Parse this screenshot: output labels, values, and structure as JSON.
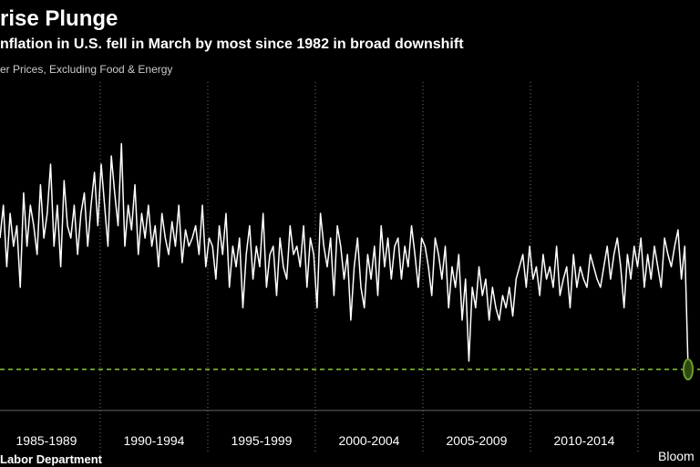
{
  "chart_data": {
    "type": "line",
    "title": "rise Plunge",
    "subtitle": "nflation in U.S. fell in March by most since 1982 in broad downshift",
    "y_label": "er Prices, Excluding Food & Energy",
    "source": "Labor Department",
    "brand": "Bloom",
    "period_labels": [
      "1985-1989",
      "1990-1994",
      "1995-1999",
      "2000-2004",
      "2005-2009",
      "2010-2014"
    ],
    "ylim": [
      -0.2,
      0.6
    ],
    "grid": true,
    "reference_line": {
      "value": -0.1,
      "color": "#8cc63f"
    },
    "highlight_color": "#6b9e2c",
    "series": [
      {
        "color": "#ffffff",
        "values": [
          0.22,
          0.3,
          0.15,
          0.28,
          0.2,
          0.25,
          0.1,
          0.33,
          0.2,
          0.3,
          0.25,
          0.18,
          0.35,
          0.22,
          0.28,
          0.4,
          0.2,
          0.3,
          0.15,
          0.36,
          0.25,
          0.22,
          0.3,
          0.18,
          0.28,
          0.33,
          0.2,
          0.3,
          0.38,
          0.25,
          0.4,
          0.3,
          0.2,
          0.42,
          0.33,
          0.25,
          0.45,
          0.2,
          0.3,
          0.24,
          0.35,
          0.18,
          0.28,
          0.22,
          0.3,
          0.2,
          0.25,
          0.15,
          0.28,
          0.22,
          0.18,
          0.26,
          0.2,
          0.3,
          0.16,
          0.24,
          0.2,
          0.22,
          0.25,
          0.18,
          0.3,
          0.15,
          0.22,
          0.2,
          0.12,
          0.25,
          0.18,
          0.28,
          0.1,
          0.2,
          0.15,
          0.22,
          0.05,
          0.18,
          0.25,
          0.12,
          0.2,
          0.15,
          0.28,
          0.1,
          0.18,
          0.2,
          0.08,
          0.22,
          0.15,
          0.12,
          0.25,
          0.18,
          0.2,
          0.15,
          0.25,
          0.1,
          0.22,
          0.18,
          0.05,
          0.28,
          0.2,
          0.15,
          0.22,
          0.08,
          0.25,
          0.2,
          0.12,
          0.18,
          0.02,
          0.15,
          0.22,
          0.1,
          0.05,
          0.18,
          0.12,
          0.2,
          0.08,
          0.25,
          0.15,
          0.22,
          0.12,
          0.2,
          0.22,
          0.12,
          0.2,
          0.15,
          0.25,
          0.18,
          0.1,
          0.22,
          0.2,
          0.15,
          0.08,
          0.22,
          0.18,
          0.12,
          0.2,
          0.05,
          0.15,
          0.1,
          0.18,
          0.02,
          0.12,
          -0.08,
          0.1,
          0.05,
          0.15,
          0.08,
          0.12,
          0.02,
          0.1,
          0.05,
          0.02,
          0.08,
          0.05,
          0.1,
          0.03,
          0.12,
          0.15,
          0.18,
          0.1,
          0.2,
          0.12,
          0.15,
          0.08,
          0.18,
          0.12,
          0.15,
          0.1,
          0.2,
          0.08,
          0.12,
          0.15,
          0.05,
          0.18,
          0.1,
          0.15,
          0.12,
          0.1,
          0.18,
          0.15,
          0.12,
          0.1,
          0.15,
          0.2,
          0.12,
          0.18,
          0.22,
          0.15,
          0.05,
          0.18,
          0.12,
          0.2,
          0.15,
          0.22,
          0.1,
          0.18,
          0.12,
          0.2,
          0.15,
          0.1,
          0.22,
          0.18,
          0.15,
          0.2,
          0.24,
          0.12,
          0.2,
          -0.1
        ]
      }
    ]
  }
}
